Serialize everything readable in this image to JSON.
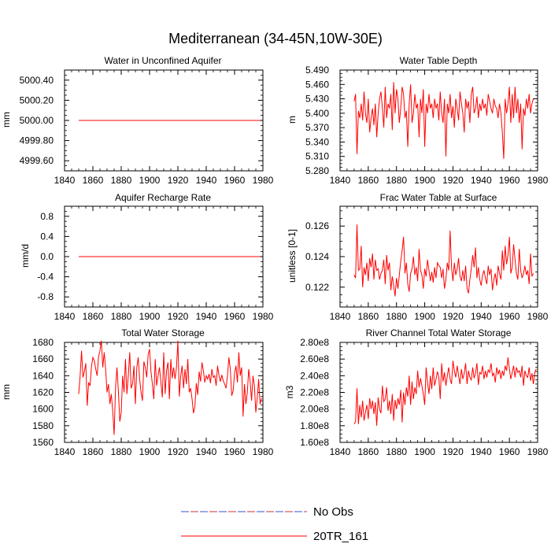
{
  "figure": {
    "title": "Mediterranean (34-45N,10W-30E)"
  },
  "legend": [
    {
      "label": "No Obs",
      "style": "dashed",
      "colors": [
        "#cc3333",
        "#3355cc"
      ]
    },
    {
      "label": "20TR_161",
      "style": "solid",
      "colors": [
        "#ff0000"
      ]
    }
  ],
  "chart_data": [
    {
      "type": "line",
      "title": "Water in Unconfined Aquifer",
      "xlabel": "",
      "ylabel": "mm",
      "xlim": [
        1840,
        1980
      ],
      "ylim": [
        4999.5,
        5000.5
      ],
      "xticks": [
        1840,
        1860,
        1880,
        1900,
        1920,
        1940,
        1960,
        1980
      ],
      "xtick_labels": [
        "1840",
        "1860",
        "1880",
        "1900",
        "1920",
        "1940",
        "1960",
        "1980"
      ],
      "yticks": [
        4999.6,
        4999.8,
        5000.0,
        5000.2,
        5000.4
      ],
      "ytick_labels": [
        "4999.60",
        "4999.80",
        "5000.00",
        "5000.20",
        "5000.40"
      ],
      "series": [
        {
          "name": "20TR_161",
          "color": "#ff0000",
          "x": [
            1850,
            1978
          ],
          "values": [
            5000.0,
            5000.0
          ]
        }
      ]
    },
    {
      "type": "line",
      "title": "Water Table Depth",
      "xlabel": "",
      "ylabel": "m",
      "xlim": [
        1840,
        1980
      ],
      "ylim": [
        5.28,
        5.49
      ],
      "xticks": [
        1840,
        1860,
        1880,
        1900,
        1920,
        1940,
        1960,
        1980
      ],
      "xtick_labels": [
        "1840",
        "1860",
        "1880",
        "1900",
        "1920",
        "1940",
        "1960",
        "1980"
      ],
      "yticks": [
        5.28,
        5.31,
        5.34,
        5.37,
        5.4,
        5.43,
        5.46,
        5.49
      ],
      "ytick_labels": [
        "5.280",
        "5.310",
        "5.340",
        "5.370",
        "5.400",
        "5.430",
        "5.460",
        "5.490"
      ],
      "series": [
        {
          "name": "20TR_161",
          "color": "#ff0000",
          "x0": 1850,
          "values": [
            5.425,
            5.44,
            5.315,
            5.405,
            5.39,
            5.42,
            5.385,
            5.445,
            5.4,
            5.38,
            5.43,
            5.36,
            5.39,
            5.41,
            5.375,
            5.42,
            5.35,
            5.4,
            5.43,
            5.445,
            5.41,
            5.37,
            5.455,
            5.39,
            5.42,
            5.41,
            5.44,
            5.365,
            5.465,
            5.4,
            5.45,
            5.43,
            5.38,
            5.41,
            5.455,
            5.44,
            5.39,
            5.405,
            5.33,
            5.42,
            5.46,
            5.38,
            5.4,
            5.44,
            5.41,
            5.42,
            5.35,
            5.43,
            5.4,
            5.45,
            5.33,
            5.42,
            5.4,
            5.44,
            5.41,
            5.42,
            5.39,
            5.43,
            5.41,
            5.42,
            5.385,
            5.445,
            5.4,
            5.38,
            5.43,
            5.31,
            5.42,
            5.4,
            5.44,
            5.39,
            5.415,
            5.37,
            5.43,
            5.41,
            5.385,
            5.445,
            5.42,
            5.4,
            5.36,
            5.43,
            5.41,
            5.425,
            5.38,
            5.44,
            5.455,
            5.4,
            5.41,
            5.435,
            5.39,
            5.42,
            5.405,
            5.43,
            5.41,
            5.42,
            5.395,
            5.44,
            5.425,
            5.41,
            5.4,
            5.43,
            5.415,
            5.41,
            5.39,
            5.42,
            5.4,
            5.36,
            5.305,
            5.43,
            5.4,
            5.42,
            5.455,
            5.38,
            5.44,
            5.39,
            5.455,
            5.4,
            5.43,
            5.38,
            5.42,
            5.325,
            5.41,
            5.395,
            5.43,
            5.41,
            5.44,
            5.4,
            5.42,
            5.43
          ]
        }
      ]
    },
    {
      "type": "line",
      "title": "Aquifer Recharge Rate",
      "xlabel": "",
      "ylabel": "mm/d",
      "xlim": [
        1840,
        1980
      ],
      "ylim": [
        -1.0,
        1.0
      ],
      "xticks": [
        1840,
        1860,
        1880,
        1900,
        1920,
        1940,
        1960,
        1980
      ],
      "xtick_labels": [
        "1840",
        "1860",
        "1880",
        "1900",
        "1920",
        "1940",
        "1960",
        "1980"
      ],
      "yticks": [
        -0.8,
        -0.4,
        0.0,
        0.4,
        0.8
      ],
      "ytick_labels": [
        "-0.8",
        "-0.4",
        "0.0",
        "0.4",
        "0.8"
      ],
      "series": [
        {
          "name": "20TR_161",
          "color": "#ff0000",
          "x": [
            1850,
            1978
          ],
          "values": [
            0.0,
            0.0
          ]
        }
      ]
    },
    {
      "type": "line",
      "title": "Frac Water Table at Surface",
      "xlabel": "",
      "ylabel": "unitless [0-1]",
      "xlim": [
        1840,
        1980
      ],
      "ylim": [
        0.1207,
        0.1273
      ],
      "xticks": [
        1840,
        1860,
        1880,
        1900,
        1920,
        1940,
        1960,
        1980
      ],
      "xtick_labels": [
        "1840",
        "1860",
        "1880",
        "1900",
        "1920",
        "1940",
        "1960",
        "1980"
      ],
      "yticks": [
        0.122,
        0.124,
        0.126
      ],
      "ytick_labels": [
        "0.122",
        "0.124",
        "0.126"
      ],
      "series": [
        {
          "name": "20TR_161",
          "color": "#ff0000",
          "x0": 1850,
          "values": [
            0.1228,
            0.1226,
            0.1261,
            0.1231,
            0.1232,
            0.1247,
            0.122,
            0.1233,
            0.1228,
            0.1236,
            0.1224,
            0.1239,
            0.1233,
            0.1242,
            0.1225,
            0.1238,
            0.1231,
            0.1232,
            0.1225,
            0.1229,
            0.1231,
            0.1238,
            0.1222,
            0.1241,
            0.1231,
            0.1236,
            0.1218,
            0.1227,
            0.1221,
            0.1214,
            0.1226,
            0.1219,
            0.1228,
            0.1237,
            0.1244,
            0.1253,
            0.1229,
            0.1236,
            0.1222,
            0.1217,
            0.1229,
            0.1232,
            0.124,
            0.1228,
            0.1233,
            0.1224,
            0.1245,
            0.1231,
            0.1228,
            0.1219,
            0.1232,
            0.1227,
            0.1238,
            0.1231,
            0.1224,
            0.123,
            0.1223,
            0.1233,
            0.1226,
            0.1236,
            0.1234,
            0.1233,
            0.1226,
            0.1232,
            0.1219,
            0.1225,
            0.1236,
            0.1231,
            0.1257,
            0.1233,
            0.1224,
            0.1236,
            0.1228,
            0.1232,
            0.1239,
            0.1227,
            0.1224,
            0.1231,
            0.1224,
            0.1234,
            0.1219,
            0.1216,
            0.1225,
            0.1232,
            0.1241,
            0.1233,
            0.1246,
            0.1226,
            0.1233,
            0.1225,
            0.1221,
            0.1228,
            0.1231,
            0.1226,
            0.1222,
            0.1234,
            0.1228,
            0.1232,
            0.1218,
            0.1225,
            0.1229,
            0.1221,
            0.1234,
            0.1229,
            0.1225,
            0.1244,
            0.1231,
            0.1247,
            0.1235,
            0.1241,
            0.1253,
            0.1229,
            0.1233,
            0.1248,
            0.1238,
            0.1229,
            0.1225,
            0.1245,
            0.1231,
            0.1226,
            0.1229,
            0.1234,
            0.1228,
            0.1231,
            0.1222,
            0.1242,
            0.1227,
            0.1229
          ]
        }
      ]
    },
    {
      "type": "line",
      "title": "Total Water Storage",
      "xlabel": "",
      "ylabel": "mm",
      "xlim": [
        1840,
        1980
      ],
      "ylim": [
        1560,
        1680
      ],
      "xticks": [
        1840,
        1860,
        1880,
        1900,
        1920,
        1940,
        1960,
        1980
      ],
      "xtick_labels": [
        "1840",
        "1860",
        "1880",
        "1900",
        "1920",
        "1940",
        "1960",
        "1980"
      ],
      "yticks": [
        1560,
        1580,
        1600,
        1620,
        1640,
        1660,
        1680
      ],
      "ytick_labels": [
        "1560",
        "1580",
        "1600",
        "1620",
        "1640",
        "1660",
        "1680"
      ],
      "series": [
        {
          "name": "20TR_161",
          "color": "#ff0000",
          "x0": 1850,
          "values": [
            1618,
            1640,
            1670,
            1638,
            1645,
            1655,
            1604,
            1632,
            1628,
            1651,
            1662,
            1658,
            1648,
            1640,
            1663,
            1670,
            1682,
            1650,
            1668,
            1648,
            1620,
            1630,
            1606,
            1618,
            1598,
            1569,
            1626,
            1650,
            1621,
            1585,
            1596,
            1640,
            1620,
            1660,
            1618,
            1640,
            1668,
            1625,
            1630,
            1652,
            1606,
            1650,
            1662,
            1636,
            1620,
            1610,
            1657,
            1650,
            1638,
            1665,
            1672,
            1645,
            1630,
            1612,
            1660,
            1628,
            1640,
            1650,
            1632,
            1614,
            1668,
            1618,
            1646,
            1656,
            1612,
            1660,
            1637,
            1650,
            1636,
            1650,
            1682,
            1615,
            1640,
            1652,
            1625,
            1648,
            1630,
            1660,
            1620,
            1625,
            1612,
            1595,
            1603,
            1631,
            1617,
            1645,
            1633,
            1656,
            1646,
            1632,
            1640,
            1636,
            1642,
            1631,
            1648,
            1638,
            1640,
            1628,
            1652,
            1640,
            1633,
            1641,
            1634,
            1630,
            1625,
            1640,
            1662,
            1648,
            1616,
            1622,
            1643,
            1652,
            1632,
            1668,
            1640,
            1650,
            1591,
            1630,
            1606,
            1620,
            1648,
            1633,
            1610,
            1640,
            1628,
            1596,
            1613,
            1636,
            1606,
            1613
          ]
        }
      ]
    },
    {
      "type": "line",
      "title": "River Channel Total Water Storage",
      "xlabel": "",
      "ylabel": "m3",
      "xlim": [
        1840,
        1980
      ],
      "ylim": [
        160000000,
        280000000
      ],
      "xticks": [
        1840,
        1860,
        1880,
        1900,
        1920,
        1940,
        1960,
        1980
      ],
      "xtick_labels": [
        "1840",
        "1860",
        "1880",
        "1900",
        "1920",
        "1940",
        "1960",
        "1980"
      ],
      "yticks": [
        160000000,
        180000000,
        200000000,
        220000000,
        240000000,
        260000000,
        280000000
      ],
      "ytick_labels": [
        "1.60e8",
        "1.80e8",
        "2.00e8",
        "2.20e8",
        "2.40e8",
        "2.60e8",
        "2.80e8"
      ],
      "series": [
        {
          "name": "20TR_161",
          "color": "#ff0000",
          "x0": 1850,
          "values": [
            182000000,
            185000000,
            225000000,
            182000000,
            205000000,
            190000000,
            210000000,
            186000000,
            196000000,
            205000000,
            188000000,
            213000000,
            200000000,
            210000000,
            194000000,
            208000000,
            180000000,
            214000000,
            200000000,
            195000000,
            228000000,
            209000000,
            212000000,
            226000000,
            198000000,
            210000000,
            194000000,
            218000000,
            186000000,
            211000000,
            200000000,
            213000000,
            205000000,
            223000000,
            184000000,
            220000000,
            205000000,
            226000000,
            215000000,
            240000000,
            205000000,
            233000000,
            212000000,
            226000000,
            218000000,
            246000000,
            226000000,
            237000000,
            228000000,
            218000000,
            205000000,
            250000000,
            232000000,
            218000000,
            240000000,
            224000000,
            250000000,
            228000000,
            236000000,
            245000000,
            238000000,
            212000000,
            255000000,
            233000000,
            244000000,
            228000000,
            240000000,
            250000000,
            236000000,
            230000000,
            258000000,
            246000000,
            238000000,
            252000000,
            240000000,
            230000000,
            248000000,
            236000000,
            243000000,
            255000000,
            230000000,
            246000000,
            238000000,
            235000000,
            250000000,
            237000000,
            243000000,
            255000000,
            229000000,
            244000000,
            242000000,
            252000000,
            236000000,
            246000000,
            238000000,
            247000000,
            244000000,
            255000000,
            240000000,
            243000000,
            232000000,
            250000000,
            242000000,
            247000000,
            236000000,
            246000000,
            240000000,
            252000000,
            246000000,
            262000000,
            248000000,
            236000000,
            244000000,
            252000000,
            238000000,
            250000000,
            244000000,
            246000000,
            238000000,
            252000000,
            228000000,
            246000000,
            240000000,
            238000000,
            250000000,
            234000000,
            243000000,
            230000000,
            244000000,
            248000000
          ]
        }
      ]
    }
  ]
}
